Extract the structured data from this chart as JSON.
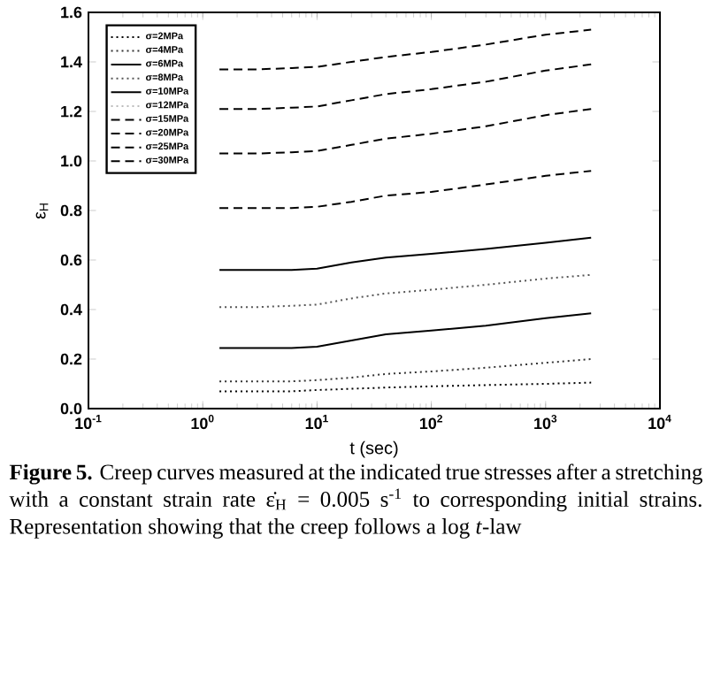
{
  "chart_data": {
    "type": "line",
    "xlabel": "t (sec)",
    "ylabel": "ε$_{H}$",
    "log": "x",
    "xlim": [
      0.1,
      10000
    ],
    "ylim": [
      0,
      1.6
    ],
    "xticks": [
      {
        "value": 0.1,
        "label": "10$^{-1}$"
      },
      {
        "value": 1,
        "label": "10$^{0}$"
      },
      {
        "value": 10,
        "label": "10$^{1}$"
      },
      {
        "value": 100,
        "label": "10$^{2}$"
      },
      {
        "value": 1000,
        "label": "10$^{3}$"
      },
      {
        "value": 10000,
        "label": "10$^{4}$"
      }
    ],
    "yticks": [
      {
        "value": 0,
        "label": "0.0"
      },
      0.2,
      0.4,
      0.6,
      0.8,
      {
        "value": 1,
        "label": "1.0"
      },
      1.2,
      1.4,
      1.6
    ],
    "x": [
      1.4,
      3,
      6,
      10,
      20,
      40,
      100,
      300,
      1000,
      2500
    ],
    "legend": "top left",
    "grid": false,
    "marker": "none",
    "series": [
      {
        "name": "σ=2MPa",
        "color": "#000000",
        "line_style": "dotted",
        "values": [
          0.07,
          0.07,
          0.07,
          0.075,
          0.08,
          0.085,
          0.09,
          0.095,
          0.1,
          0.105
        ]
      },
      {
        "name": "σ=4MPa",
        "color": "#333333",
        "line_style": "dotted",
        "values": [
          0.11,
          0.11,
          0.11,
          0.115,
          0.125,
          0.14,
          0.15,
          0.165,
          0.185,
          0.2
        ]
      },
      {
        "name": "σ=6MPa",
        "color": "#000000",
        "line_style": "solid",
        "values": [
          0.245,
          0.245,
          0.245,
          0.25,
          0.275,
          0.3,
          0.315,
          0.335,
          0.365,
          0.385
        ]
      },
      {
        "name": "σ=8MPa",
        "color": "#555555",
        "line_style": "dotted",
        "values": [
          0.41,
          0.41,
          0.415,
          0.42,
          0.445,
          0.465,
          0.48,
          0.5,
          0.525,
          0.54
        ]
      },
      {
        "name": "σ=10MPa",
        "color": "#000000",
        "line_style": "solid",
        "values": [
          0.56,
          0.56,
          0.56,
          0.565,
          0.59,
          0.61,
          0.625,
          0.645,
          0.67,
          0.69
        ]
      },
      {
        "name": "σ=12MPa",
        "color": "#bbbbbb",
        "line_style": "dotted",
        "values": [
          null,
          null,
          null,
          null,
          null,
          null,
          null,
          null,
          null,
          null
        ]
      },
      {
        "name": "σ=15MPa",
        "color": "#000000",
        "line_style": "dashed",
        "values": [
          0.81,
          0.81,
          0.81,
          0.815,
          0.835,
          0.86,
          0.875,
          0.905,
          0.94,
          0.96
        ]
      },
      {
        "name": "σ=20MPa",
        "color": "#000000",
        "line_style": "dashed",
        "values": [
          1.03,
          1.03,
          1.035,
          1.04,
          1.065,
          1.09,
          1.11,
          1.14,
          1.185,
          1.21
        ]
      },
      {
        "name": "σ=25MPa",
        "color": "#000000",
        "line_style": "dashed",
        "values": [
          1.21,
          1.21,
          1.215,
          1.22,
          1.245,
          1.27,
          1.29,
          1.32,
          1.365,
          1.39
        ]
      },
      {
        "name": "σ=30MPa",
        "color": "#000000",
        "line_style": "dashed",
        "values": [
          1.37,
          1.37,
          1.375,
          1.38,
          1.4,
          1.42,
          1.44,
          1.47,
          1.51,
          1.53
        ]
      }
    ],
    "annotations": [
      "**Figure 5.** Creep curves measured at the indicated true stresses after a stretching with a constant strain rate ε̇$_{H}$ = 0.005 s$^{-1}$ to corresponding initial strains. Representation showing that the creep follows a log *t*-law"
    ]
  }
}
